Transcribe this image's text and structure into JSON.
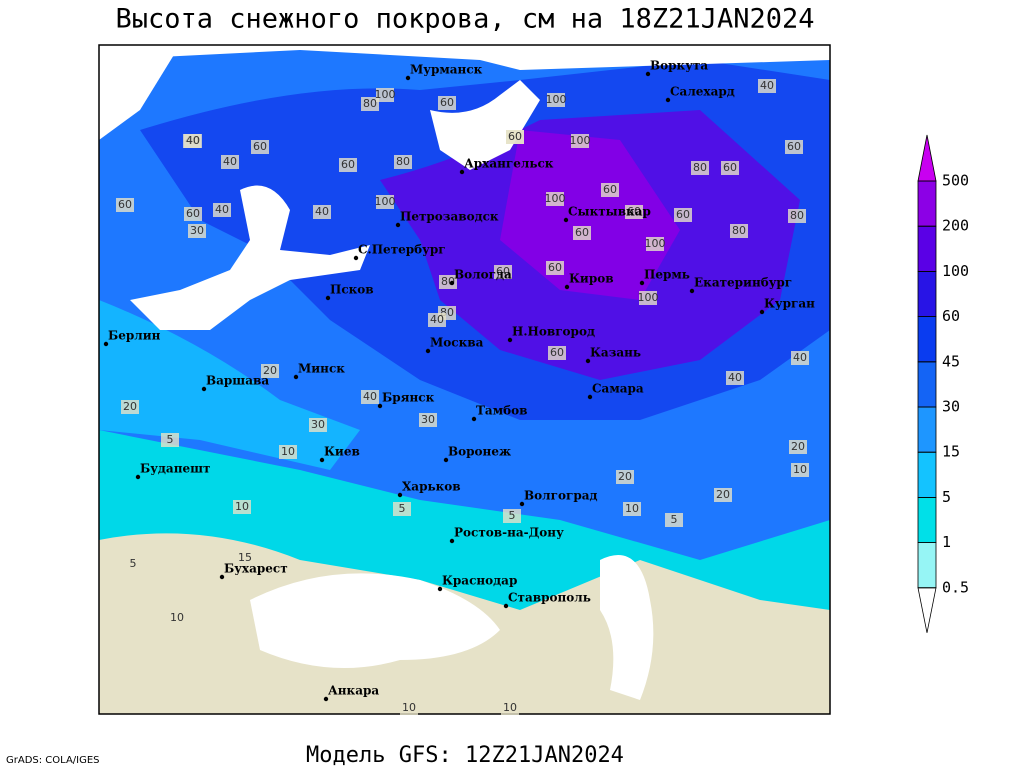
{
  "title": "Высота снежного покрова, см на 18Z21JAN2024",
  "footer": "Модель GFS: 12Z21JAN2024",
  "credit": "GrADS: COLA/IGES",
  "legend": {
    "levels": [
      0.5,
      1,
      5,
      15,
      30,
      45,
      60,
      100,
      200,
      500
    ],
    "colors": [
      "#ffffff",
      "#96f5f5",
      "#00e0e8",
      "#14c3ff",
      "#1e96ff",
      "#1464f5",
      "#0a3cf0",
      "#2814e6",
      "#5a00e6",
      "#8c00e6",
      "#c800f0"
    ]
  },
  "cities": [
    "Мурманск",
    "Воркута",
    "Салехард",
    "Архангельск",
    "Петрозаводск",
    "Сыктывкар",
    "С.Петербург",
    "Вологда",
    "Киров",
    "Пермь",
    "Екатеринбург",
    "Курган",
    "Псков",
    "Н.Новгород",
    "Москва",
    "Казань",
    "Берлин",
    "Минск",
    "Варшава",
    "Брянск",
    "Самара",
    "Тамбов",
    "Киев",
    "Воронеж",
    "Будапешт",
    "Харьков",
    "Волгоград",
    "Ростов-на-Дону",
    "Бухарест",
    "Краснодар",
    "Ставрополь",
    "Анкара"
  ],
  "contour_labels": [
    40,
    80,
    100,
    60,
    100,
    40,
    60,
    80,
    60,
    100,
    100,
    60,
    40,
    60,
    80,
    40,
    60,
    60,
    80,
    40,
    80,
    60,
    100,
    60,
    80,
    100,
    60,
    60,
    40,
    60,
    30,
    40,
    80,
    60,
    60,
    100,
    60,
    40,
    60,
    20,
    30,
    40,
    30,
    40,
    20,
    10,
    5,
    10,
    20,
    10,
    20,
    15,
    10,
    5,
    5,
    10,
    5,
    10,
    5,
    20,
    10
  ]
}
